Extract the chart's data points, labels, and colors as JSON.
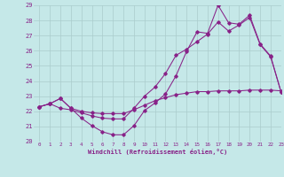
{
  "xlabel": "Windchill (Refroidissement éolien,°C)",
  "xlim": [
    -0.5,
    23
  ],
  "ylim": [
    20,
    29
  ],
  "xticks": [
    0,
    1,
    2,
    3,
    4,
    5,
    6,
    7,
    8,
    9,
    10,
    11,
    12,
    13,
    14,
    15,
    16,
    17,
    18,
    19,
    20,
    21,
    22,
    23
  ],
  "yticks": [
    20,
    21,
    22,
    23,
    24,
    25,
    26,
    27,
    28,
    29
  ],
  "background_color": "#c5e8e8",
  "grid_color": "#aacccc",
  "line_color": "#882288",
  "hours": [
    0,
    1,
    2,
    3,
    4,
    5,
    6,
    7,
    8,
    9,
    10,
    11,
    12,
    13,
    14,
    15,
    16,
    17,
    18,
    19,
    20,
    21,
    22,
    23
  ],
  "series": [
    [
      22.3,
      22.5,
      22.85,
      22.2,
      21.55,
      21.05,
      20.65,
      20.45,
      20.45,
      21.05,
      22.05,
      22.55,
      23.15,
      24.35,
      25.95,
      27.25,
      27.15,
      29.0,
      27.85,
      27.75,
      28.35,
      26.45,
      25.65,
      23.25
    ],
    [
      22.3,
      22.5,
      22.2,
      22.1,
      21.9,
      21.7,
      21.55,
      21.5,
      21.5,
      22.2,
      23.0,
      23.6,
      24.5,
      25.7,
      26.1,
      26.6,
      27.1,
      27.9,
      27.3,
      27.7,
      28.2,
      26.4,
      25.6,
      23.25
    ],
    [
      22.3,
      22.5,
      22.85,
      22.2,
      22.0,
      21.9,
      21.85,
      21.85,
      21.85,
      22.1,
      22.4,
      22.7,
      22.9,
      23.1,
      23.2,
      23.3,
      23.3,
      23.35,
      23.35,
      23.35,
      23.4,
      23.4,
      23.4,
      23.35
    ]
  ]
}
